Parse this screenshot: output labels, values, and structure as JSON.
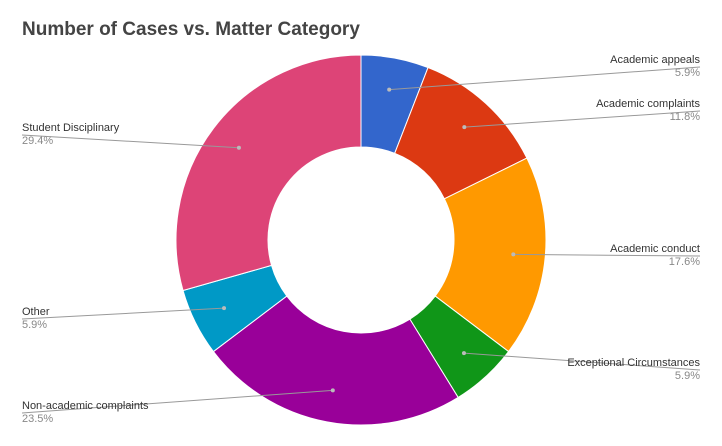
{
  "chart_data": {
    "type": "pie",
    "title": "Number of Cases vs. Matter Category",
    "donut": true,
    "slices": [
      {
        "name": "Academic appeals",
        "value": 5.9,
        "label": "5.9%",
        "color": "#3366cc"
      },
      {
        "name": "Academic complaints",
        "value": 11.8,
        "label": "11.8%",
        "color": "#dc3912"
      },
      {
        "name": "Academic conduct",
        "value": 17.6,
        "label": "17.6%",
        "color": "#ff9900"
      },
      {
        "name": "Exceptional Circumstances",
        "value": 5.9,
        "label": "5.9%",
        "color": "#109618"
      },
      {
        "name": "Non-academic complaints",
        "value": 23.5,
        "label": "23.5%",
        "color": "#990099"
      },
      {
        "name": "Other",
        "value": 5.9,
        "label": "5.9%",
        "color": "#0099c6"
      },
      {
        "name": "Student Disciplinary",
        "value": 29.4,
        "label": "29.4%",
        "color": "#dd4477"
      }
    ]
  }
}
